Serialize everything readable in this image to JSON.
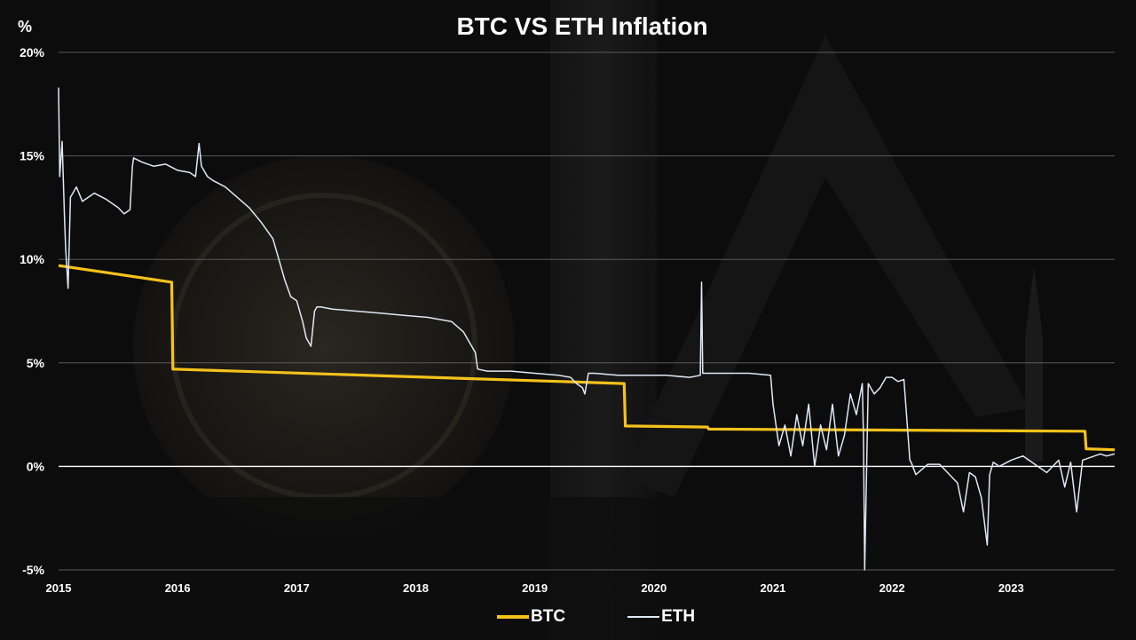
{
  "colors": {
    "btc": "#f5c21b",
    "eth": "#dfe8f5",
    "grid": "#5a5a5a",
    "text": "#ffffff"
  },
  "chart_data": {
    "type": "line",
    "title": "BTC VS ETH Inflation",
    "ylabel": "%",
    "xlabel": "",
    "ylim": [
      -5,
      20
    ],
    "xlim": [
      2015,
      2023.87
    ],
    "y_ticks": [
      -5,
      0,
      5,
      10,
      15,
      20
    ],
    "y_tick_labels": [
      "-5%",
      "0%",
      "5%",
      "10%",
      "15%",
      "20%"
    ],
    "x_ticks": [
      2015,
      2016,
      2017,
      2018,
      2019,
      2020,
      2021,
      2022,
      2023
    ],
    "x_tick_labels": [
      "2015",
      "2016",
      "2017",
      "2018",
      "2019",
      "2020",
      "2021",
      "2022",
      "2023"
    ],
    "grid": "horizontal",
    "legend_position": "bottom",
    "series": [
      {
        "name": "BTC",
        "x": [
          2015.0,
          2015.95,
          2015.96,
          2019.75,
          2019.76,
          2020.45,
          2020.46,
          2023.62,
          2023.63,
          2023.87
        ],
        "y": [
          9.7,
          8.9,
          4.7,
          4.0,
          1.95,
          1.9,
          1.8,
          1.7,
          0.85,
          0.8
        ]
      },
      {
        "name": "ETH",
        "x": [
          2015.0,
          2015.01,
          2015.03,
          2015.05,
          2015.06,
          2015.08,
          2015.1,
          2015.15,
          2015.2,
          2015.3,
          2015.4,
          2015.5,
          2015.55,
          2015.6,
          2015.62,
          2015.63,
          2015.7,
          2015.8,
          2015.9,
          2016.0,
          2016.1,
          2016.15,
          2016.18,
          2016.2,
          2016.25,
          2016.3,
          2016.4,
          2016.5,
          2016.6,
          2016.7,
          2016.8,
          2016.85,
          2016.9,
          2016.95,
          2017.0,
          2017.05,
          2017.08,
          2017.12,
          2017.15,
          2017.17,
          2017.2,
          2017.3,
          2017.5,
          2017.7,
          2017.9,
          2018.1,
          2018.3,
          2018.4,
          2018.5,
          2018.52,
          2018.6,
          2018.8,
          2019.0,
          2019.2,
          2019.3,
          2019.35,
          2019.4,
          2019.42,
          2019.45,
          2019.5,
          2019.7,
          2019.9,
          2020.1,
          2020.3,
          2020.39,
          2020.4,
          2020.41,
          2020.45,
          2020.6,
          2020.8,
          2020.98,
          2021.0,
          2021.05,
          2021.1,
          2021.15,
          2021.2,
          2021.25,
          2021.3,
          2021.35,
          2021.4,
          2021.45,
          2021.5,
          2021.55,
          2021.6,
          2021.65,
          2021.7,
          2021.75,
          2021.76,
          2021.77,
          2021.8,
          2021.85,
          2021.9,
          2021.95,
          2022.0,
          2022.05,
          2022.1,
          2022.15,
          2022.16,
          2022.2,
          2022.3,
          2022.4,
          2022.5,
          2022.55,
          2022.6,
          2022.65,
          2022.7,
          2022.75,
          2022.8,
          2022.82,
          2022.85,
          2022.9,
          2023.0,
          2023.1,
          2023.2,
          2023.3,
          2023.4,
          2023.45,
          2023.5,
          2023.55,
          2023.6,
          2023.65,
          2023.7,
          2023.75,
          2023.8,
          2023.87
        ],
        "y": [
          18.3,
          14.0,
          15.7,
          12.0,
          10.5,
          8.6,
          13.0,
          13.5,
          12.8,
          13.2,
          12.9,
          12.5,
          12.2,
          12.4,
          14.5,
          14.9,
          14.7,
          14.5,
          14.6,
          14.3,
          14.2,
          14.0,
          15.6,
          14.5,
          14.0,
          13.8,
          13.5,
          13.0,
          12.5,
          11.8,
          11.0,
          10.0,
          9.0,
          8.2,
          8.0,
          7.0,
          6.2,
          5.8,
          7.5,
          7.7,
          7.7,
          7.6,
          7.5,
          7.4,
          7.3,
          7.2,
          7.0,
          6.5,
          5.5,
          4.7,
          4.6,
          4.6,
          4.5,
          4.4,
          4.3,
          4.0,
          3.8,
          3.5,
          4.5,
          4.5,
          4.4,
          4.4,
          4.4,
          4.3,
          4.4,
          8.9,
          4.5,
          4.5,
          4.5,
          4.5,
          4.4,
          3.0,
          1.0,
          2.0,
          0.5,
          2.5,
          1.0,
          3.0,
          0.0,
          2.0,
          0.8,
          3.0,
          0.5,
          1.5,
          3.5,
          2.5,
          4.0,
          1.5,
          -5.0,
          4.0,
          3.5,
          3.8,
          4.3,
          4.3,
          4.1,
          4.2,
          0.3,
          0.2,
          -0.4,
          0.1,
          0.1,
          -0.5,
          -0.8,
          -2.2,
          -0.3,
          -0.5,
          -1.5,
          -3.8,
          -0.4,
          0.2,
          0.0,
          0.3,
          0.5,
          0.1,
          -0.3,
          0.3,
          -1.0,
          0.2,
          -2.2,
          0.3,
          0.4,
          0.5,
          0.6,
          0.5,
          0.6
        ]
      }
    ]
  }
}
